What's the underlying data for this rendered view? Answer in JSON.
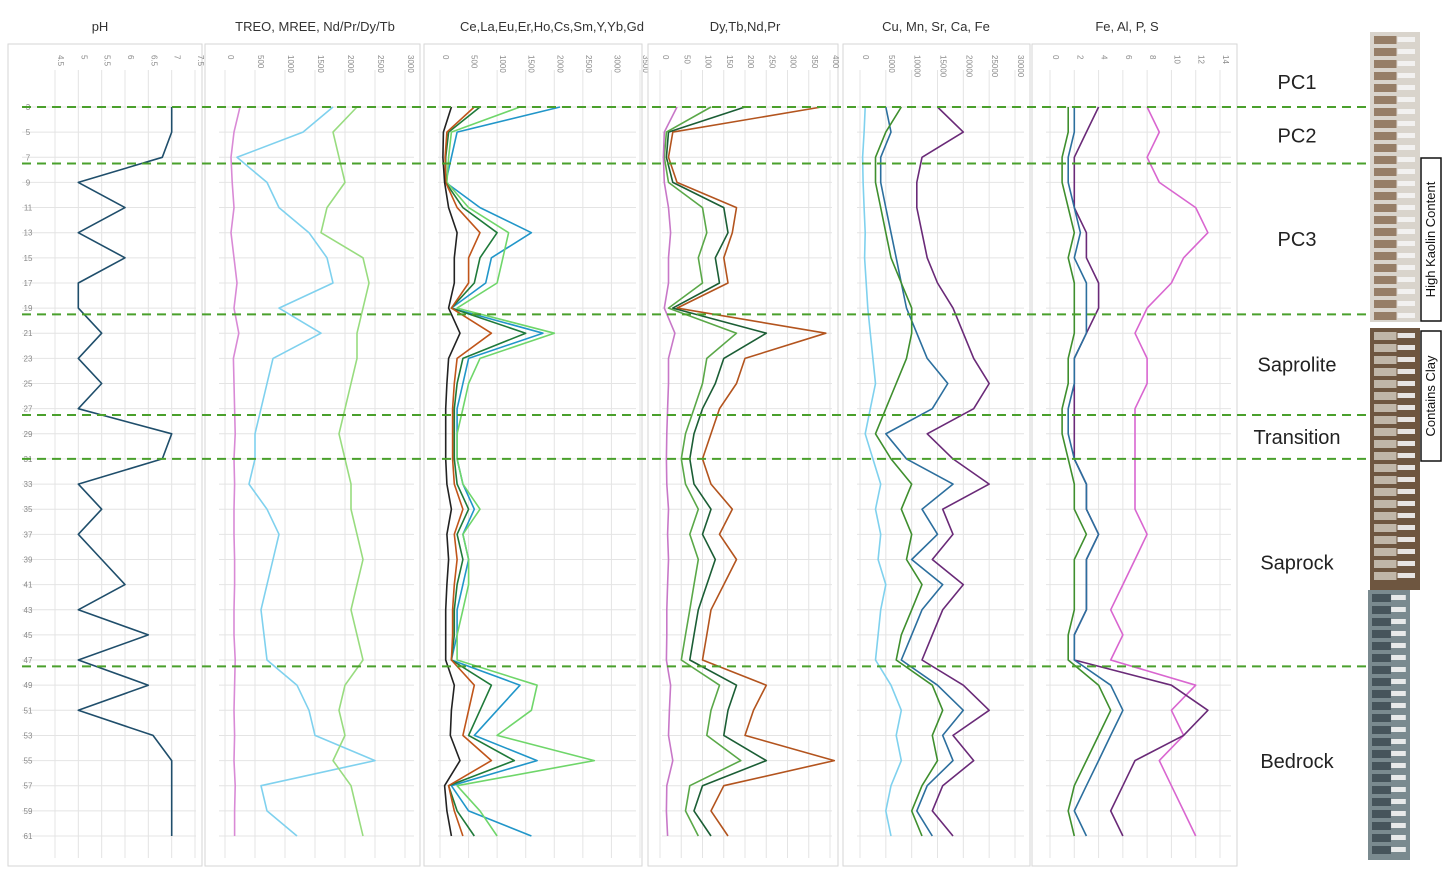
{
  "chart_data": {
    "type": "line",
    "orientation": "vertical-profile",
    "depth_ticks": [
      3,
      5,
      7,
      9,
      11,
      13,
      15,
      17,
      19,
      21,
      23,
      25,
      27,
      29,
      31,
      33,
      35,
      37,
      39,
      41,
      43,
      45,
      47,
      49,
      51,
      53,
      55,
      57,
      59,
      61
    ],
    "panels": [
      {
        "title": "pH",
        "xticks": [
          "4.5",
          "5",
          "5.5",
          "6",
          "6.5",
          "7",
          "7.5"
        ],
        "xlim": [
          4.5,
          7.5
        ],
        "series": [
          {
            "color": "#1f4e6b",
            "values": [
              7.0,
              7.0,
              6.8,
              5.0,
              6.0,
              5.0,
              6.0,
              5.0,
              5.0,
              5.5,
              5.0,
              5.5,
              5.0,
              7.0,
              6.8,
              5.0,
              5.5,
              5.0,
              5.5,
              6.0,
              5.0,
              6.5,
              5.0,
              6.5,
              5.0,
              6.6,
              7.0,
              7.0,
              7.0,
              7.0
            ]
          }
        ]
      },
      {
        "title": "TREO, MREE, Nd/Pr/Dy/Tb",
        "xticks": [
          "0",
          "500",
          "1000",
          "1500",
          "2000",
          "2500",
          "3000"
        ],
        "xlim": [
          0,
          3000
        ],
        "series": [
          {
            "color": "#7fd1ee",
            "values": [
              1800,
              1300,
              200,
              700,
              900,
              1400,
              1700,
              1800,
              900,
              1600,
              800,
              700,
              600,
              500,
              500,
              400,
              700,
              900,
              800,
              700,
              600,
              650,
              700,
              1200,
              1400,
              1500,
              2500,
              600,
              700,
              1200
            ]
          },
          {
            "color": "#98dc7f",
            "values": [
              2200,
              1800,
              1900,
              2000,
              1700,
              1600,
              2300,
              2400,
              2300,
              2200,
              2200,
              2100,
              2000,
              1900,
              2000,
              2100,
              2100,
              2200,
              2300,
              2200,
              2100,
              2200,
              2300,
              2000,
              1900,
              2000,
              1800,
              2100,
              2200,
              2300
            ]
          },
          {
            "color": "#d98ad6",
            "values": [
              250,
              150,
              100,
              120,
              150,
              100,
              150,
              200,
              150,
              230,
              140,
              150,
              160,
              170,
              150,
              160,
              150,
              150,
              160,
              160,
              150,
              150,
              170,
              160,
              150,
              160,
              150,
              170,
              160,
              160
            ]
          }
        ]
      },
      {
        "title": "Ce,La,Eu,Er,Ho,Cs,Sm,Y,Yb,Gd",
        "xticks": [
          "0",
          "500",
          "1000",
          "1500",
          "2000",
          "2500",
          "3000",
          "3500"
        ],
        "xlim": [
          0,
          3500
        ],
        "series": [
          {
            "color": "#2196c9",
            "values": [
              2100,
              300,
              200,
              100,
              700,
              1600,
              900,
              800,
              200,
              1800,
              500,
              400,
              300,
              300,
              300,
              400,
              600,
              400,
              500,
              400,
              300,
              300,
              200,
              1400,
              1000,
              600,
              1700,
              200,
              500,
              1600
            ]
          },
          {
            "color": "#6fd66a",
            "values": [
              1400,
              200,
              150,
              120,
              500,
              1200,
              1100,
              1000,
              300,
              2000,
              700,
              500,
              400,
              300,
              300,
              400,
              700,
              400,
              500,
              500,
              400,
              300,
              300,
              1700,
              1600,
              1000,
              2700,
              300,
              700,
              1000
            ]
          },
          {
            "color": "#1f7a3a",
            "values": [
              700,
              150,
              100,
              100,
              400,
              1000,
              700,
              600,
              200,
              1500,
              400,
              300,
              250,
              250,
              250,
              300,
              500,
              300,
              400,
              300,
              250,
              250,
              200,
              900,
              700,
              500,
              1300,
              150,
              300,
              600
            ]
          },
          {
            "color": "#c0551a",
            "values": [
              600,
              120,
              90,
              100,
              300,
              700,
              500,
              500,
              200,
              900,
              300,
              250,
              220,
              220,
              220,
              250,
              400,
              250,
              300,
              250,
              220,
              220,
              200,
              600,
              500,
              400,
              900,
              150,
              250,
              400
            ]
          },
          {
            "color": "#222222",
            "values": [
              200,
              60,
              50,
              80,
              150,
              300,
              250,
              250,
              150,
              350,
              150,
              120,
              100,
              100,
              100,
              120,
              200,
              120,
              150,
              120,
              100,
              100,
              100,
              250,
              200,
              180,
              350,
              80,
              120,
              200
            ]
          }
        ]
      },
      {
        "title": "Dy,Tb,Nd,Pr",
        "xticks": [
          "0",
          "50",
          "100",
          "150",
          "200",
          "250",
          "300",
          "350",
          "400"
        ],
        "xlim": [
          0,
          400
        ],
        "series": [
          {
            "color": "#b3541e",
            "values": [
              380,
              30,
              20,
              40,
              180,
              170,
              150,
              160,
              40,
              390,
              200,
              180,
              140,
              120,
              100,
              120,
              170,
              140,
              180,
              150,
              120,
              110,
              100,
              250,
              220,
              200,
              410,
              150,
              120,
              160
            ]
          },
          {
            "color": "#1b5e35",
            "values": [
              200,
              20,
              15,
              30,
              150,
              160,
              130,
              140,
              30,
              250,
              150,
              130,
              100,
              80,
              70,
              80,
              120,
              100,
              130,
              110,
              90,
              80,
              70,
              180,
              160,
              150,
              250,
              100,
              80,
              120
            ]
          },
          {
            "color": "#5aa848",
            "values": [
              120,
              15,
              10,
              20,
              100,
              110,
              90,
              100,
              20,
              180,
              110,
              100,
              80,
              60,
              50,
              60,
              90,
              70,
              90,
              80,
              70,
              60,
              50,
              140,
              120,
              110,
              190,
              70,
              60,
              90
            ]
          },
          {
            "color": "#c878c8",
            "values": [
              40,
              10,
              8,
              10,
              20,
              25,
              20,
              20,
              10,
              35,
              20,
              20,
              18,
              16,
              15,
              16,
              20,
              18,
              20,
              18,
              16,
              16,
              15,
              25,
              22,
              20,
              30,
              16,
              15,
              18
            ]
          }
        ]
      },
      {
        "title": "Cu, Mn, Sr, Ca, Fe",
        "xticks": [
          "0",
          "5000",
          "10000",
          "15000",
          "20000",
          "25000",
          "30000"
        ],
        "xlim": [
          0,
          30000
        ],
        "series": [
          {
            "color": "#6a2a78",
            "values": [
              15000,
              20000,
              12000,
              11000,
              11000,
              12000,
              13000,
              15000,
              18000,
              20000,
              22000,
              25000,
              22000,
              13000,
              18000,
              25000,
              16000,
              18000,
              14000,
              20000,
              16000,
              14000,
              12000,
              20000,
              25000,
              18000,
              22000,
              16000,
              14000,
              18000
            ]
          },
          {
            "color": "#2c6f9e",
            "values": [
              5000,
              6000,
              4000,
              4000,
              5000,
              6000,
              7000,
              8000,
              9000,
              11000,
              13000,
              17000,
              14000,
              5000,
              9000,
              18000,
              12000,
              15000,
              10000,
              16000,
              12000,
              10000,
              8000,
              15000,
              20000,
              16000,
              18000,
              13000,
              11000,
              14000
            ]
          },
          {
            "color": "#3f8f2e",
            "values": [
              8000,
              5000,
              3000,
              3000,
              4000,
              5000,
              6000,
              8000,
              10000,
              10000,
              9000,
              7000,
              5000,
              3000,
              6000,
              10000,
              8000,
              10000,
              9000,
              12000,
              10000,
              8000,
              7000,
              14000,
              16000,
              14000,
              15000,
              12000,
              10000,
              12000
            ]
          },
          {
            "color": "#7fd1ee",
            "values": [
              1000,
              800,
              500,
              600,
              800,
              1000,
              900,
              1200,
              1500,
              2000,
              2500,
              3000,
              2000,
              1000,
              2500,
              4000,
              3000,
              4000,
              3500,
              5000,
              4000,
              3500,
              3000,
              6000,
              8000,
              7000,
              8000,
              6000,
              5000,
              6000
            ]
          }
        ]
      },
      {
        "title": "Fe, Al, P, S",
        "xticks": [
          "0",
          "2",
          "4",
          "6",
          "8",
          "10",
          "12",
          "14"
        ],
        "xlim": [
          0,
          14
        ],
        "series": [
          {
            "color": "#d966d0",
            "values": [
              8,
              9,
              8,
              9,
              12,
              13,
              11,
              10,
              8,
              7,
              8,
              8,
              7,
              7,
              7,
              7,
              7,
              8,
              7,
              6,
              5,
              6,
              5,
              12,
              10,
              11,
              9,
              10,
              11,
              12
            ]
          },
          {
            "color": "#6a2a78",
            "values": [
              4,
              3,
              2,
              2,
              2,
              3,
              3,
              4,
              4,
              3,
              2,
              2,
              2,
              2,
              2,
              3,
              3,
              4,
              3,
              3,
              3,
              2,
              2,
              10,
              13,
              11,
              7,
              6,
              5,
              6
            ]
          },
          {
            "color": "#2c6f9e",
            "values": [
              2,
              2,
              1.5,
              1.5,
              2,
              2.5,
              2,
              3,
              3,
              3,
              2,
              2,
              1.5,
              1.5,
              2,
              3,
              3,
              4,
              3,
              3,
              3,
              2,
              2,
              5,
              6,
              5,
              4,
              3,
              2,
              3
            ]
          },
          {
            "color": "#3f8f2e",
            "values": [
              1.5,
              1.5,
              1,
              1,
              1.5,
              2,
              1.5,
              2,
              2,
              2,
              1.5,
              1.5,
              1,
              1,
              1.5,
              2,
              2,
              3,
              2,
              2,
              2,
              1.5,
              1.5,
              4,
              5,
              4,
              3,
              2,
              1.5,
              2
            ]
          }
        ]
      }
    ],
    "zones": [
      {
        "label": "PC1"
      },
      {
        "label": "PC2"
      },
      {
        "label": "PC3"
      },
      {
        "label": "Saprolite"
      },
      {
        "label": "Transition"
      },
      {
        "label": "Saprock"
      },
      {
        "label": "Bedrock"
      }
    ],
    "boundary_depths": [
      3,
      7.5,
      19.5,
      27.5,
      31,
      47.5
    ],
    "side_labels": [
      "High Kaolin Content",
      "Contains Clay"
    ],
    "grid": true,
    "legend": "none"
  }
}
